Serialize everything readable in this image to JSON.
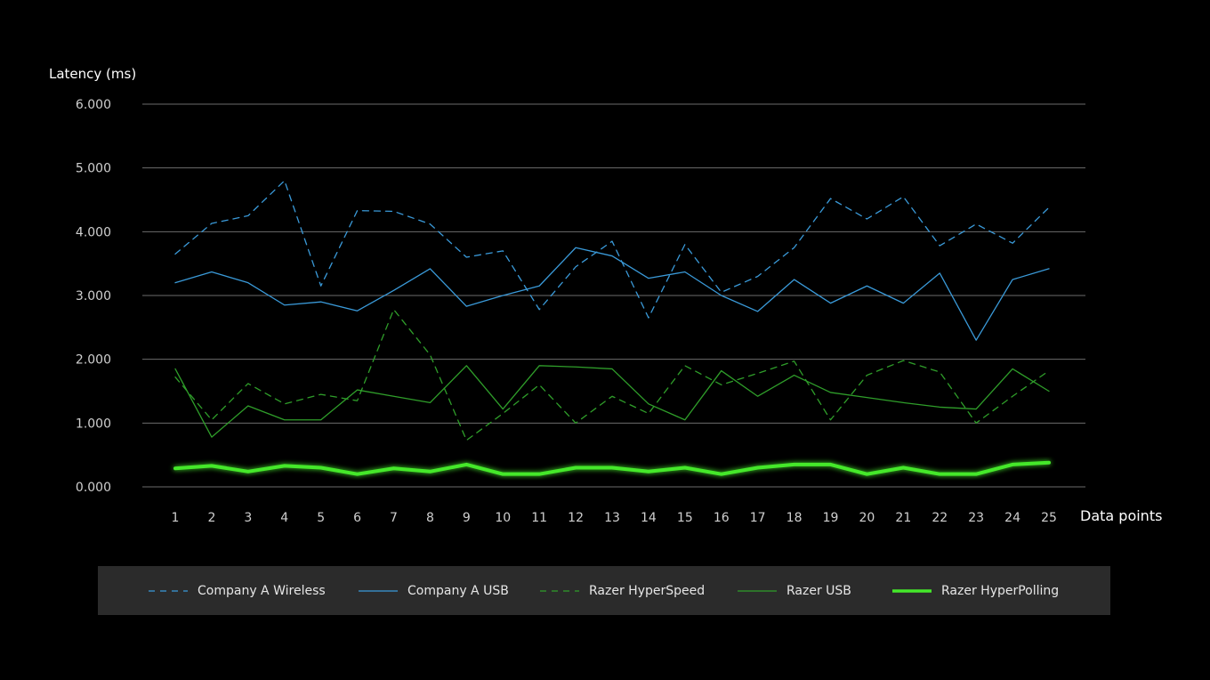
{
  "chart_data": {
    "type": "line",
    "ylabel": "Latency (ms)",
    "xlabel": "Data points",
    "ylim": [
      0,
      6
    ],
    "yticks": [
      "0.000",
      "1.000",
      "2.000",
      "3.000",
      "4.000",
      "5.000",
      "6.000"
    ],
    "categories": [
      "1",
      "2",
      "3",
      "4",
      "5",
      "6",
      "7",
      "8",
      "9",
      "10",
      "11",
      "12",
      "13",
      "14",
      "15",
      "16",
      "17",
      "18",
      "19",
      "20",
      "21",
      "22",
      "23",
      "24",
      "25"
    ],
    "grid": true,
    "legend_position": "bottom",
    "series": [
      {
        "name": "Company A Wireless",
        "color": "#3a9ad9",
        "style": "dashed",
        "values": [
          3.65,
          4.13,
          4.25,
          4.8,
          3.15,
          4.33,
          4.32,
          4.12,
          3.6,
          3.7,
          2.78,
          3.45,
          3.85,
          2.65,
          3.8,
          3.05,
          3.3,
          3.75,
          4.52,
          4.2,
          4.55,
          3.78,
          4.12,
          3.82,
          4.38
        ]
      },
      {
        "name": "Company A USB",
        "color": "#3a9ad9",
        "style": "solid",
        "values": [
          3.2,
          3.37,
          3.2,
          2.85,
          2.9,
          2.76,
          3.08,
          3.42,
          2.83,
          3.0,
          3.15,
          3.75,
          3.62,
          3.27,
          3.37,
          3.0,
          2.75,
          3.25,
          2.88,
          3.15,
          2.88,
          3.35,
          2.3,
          3.25,
          3.42
        ]
      },
      {
        "name": "Razer HyperSpeed",
        "color": "#2f9e2a",
        "style": "dashed",
        "values": [
          1.72,
          1.05,
          1.62,
          1.3,
          1.45,
          1.35,
          2.78,
          2.07,
          0.73,
          1.15,
          1.6,
          1.0,
          1.42,
          1.15,
          1.9,
          1.6,
          1.78,
          1.97,
          1.05,
          1.75,
          1.98,
          1.8,
          1.0,
          1.42,
          1.82
        ]
      },
      {
        "name": "Razer USB",
        "color": "#2f9e2a",
        "style": "solid",
        "values": [
          1.85,
          0.78,
          1.27,
          1.05,
          1.05,
          1.52,
          1.42,
          1.32,
          1.9,
          1.22,
          1.9,
          1.88,
          1.85,
          1.3,
          1.05,
          1.82,
          1.42,
          1.75,
          1.48,
          1.4,
          1.32,
          1.25,
          1.22,
          1.85,
          1.5
        ]
      },
      {
        "name": "Razer HyperPolling",
        "color": "#44e82a",
        "style": "bold",
        "values": [
          0.29,
          0.33,
          0.24,
          0.33,
          0.3,
          0.2,
          0.29,
          0.24,
          0.35,
          0.2,
          0.2,
          0.3,
          0.3,
          0.24,
          0.3,
          0.2,
          0.3,
          0.35,
          0.35,
          0.2,
          0.3,
          0.2,
          0.2,
          0.35,
          0.38
        ]
      }
    ]
  }
}
